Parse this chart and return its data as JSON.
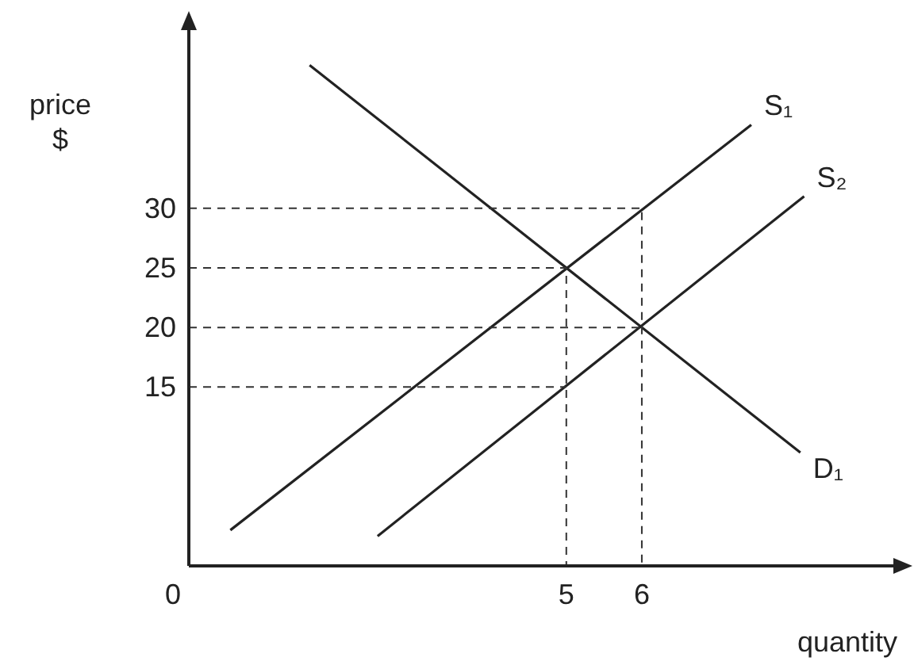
{
  "chart_data": {
    "type": "line",
    "xlabel": "quantity",
    "ylabel": "price\n$",
    "xlim": [
      0,
      9.5
    ],
    "ylim": [
      0,
      46
    ],
    "xticks": [
      0,
      5,
      6
    ],
    "yticks": [
      15,
      20,
      25,
      30
    ],
    "grid": false,
    "marker": "none",
    "tick_labels": "xy",
    "series": [
      {
        "name": "D₁",
        "color": "#222222",
        "x": [
          1.6,
          8.1
        ],
        "values": [
          42,
          9.5
        ]
      },
      {
        "name": "S₁",
        "color": "#222222",
        "x": [
          0.55,
          7.45
        ],
        "values": [
          3,
          37
        ]
      },
      {
        "name": "S₂",
        "color": "#222222",
        "x": [
          2.5,
          8.15
        ],
        "values": [
          2.5,
          31
        ]
      },
      {
        "color": "#333333",
        "line_style": "dashed",
        "x": [
          0,
          6,
          6
        ],
        "values": [
          30,
          30,
          0
        ]
      },
      {
        "color": "#333333",
        "line_style": "dashed",
        "x": [
          0,
          5,
          5
        ],
        "values": [
          25,
          25,
          0
        ]
      },
      {
        "color": "#333333",
        "line_style": "dashed",
        "x": [
          0,
          6
        ],
        "values": [
          20,
          20
        ]
      },
      {
        "color": "#333333",
        "line_style": "dashed",
        "x": [
          0,
          5
        ],
        "values": [
          15,
          15
        ]
      }
    ]
  }
}
